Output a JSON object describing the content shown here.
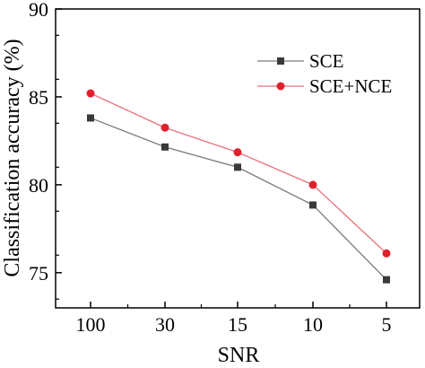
{
  "chart_data": {
    "type": "line",
    "title": "",
    "xlabel": "SNR",
    "ylabel": "Classification accuracy (%)",
    "categories": [
      "100",
      "30",
      "15",
      "10",
      "5"
    ],
    "ylim": [
      73,
      90
    ],
    "yticks": [
      75,
      80,
      85,
      90
    ],
    "grid": false,
    "legend_position": "top-right",
    "series": [
      {
        "name": "SCE",
        "values": [
          83.8,
          82.15,
          81.0,
          78.85,
          74.6
        ],
        "color": "#7a7a7a",
        "marker": "square",
        "marker_color": "#3a3a3a"
      },
      {
        "name": "SCE+NCE",
        "values": [
          85.2,
          83.25,
          81.85,
          80.0,
          76.1
        ],
        "color": "#e8707a",
        "marker": "circle",
        "marker_color": "#e0202c"
      }
    ]
  }
}
